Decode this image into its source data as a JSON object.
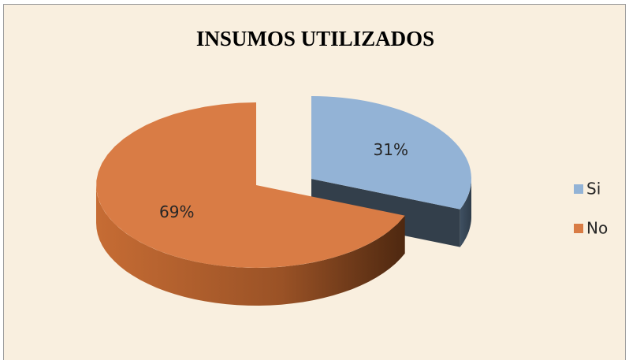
{
  "chart_data": {
    "type": "pie",
    "title": "INSUMOS UTILIZADOS",
    "categories": [
      "Si",
      "No"
    ],
    "values": [
      31,
      69
    ],
    "value_labels": [
      "31%",
      "69%"
    ],
    "colors": [
      "#93b3d6",
      "#d97c45"
    ],
    "legend": "right"
  }
}
